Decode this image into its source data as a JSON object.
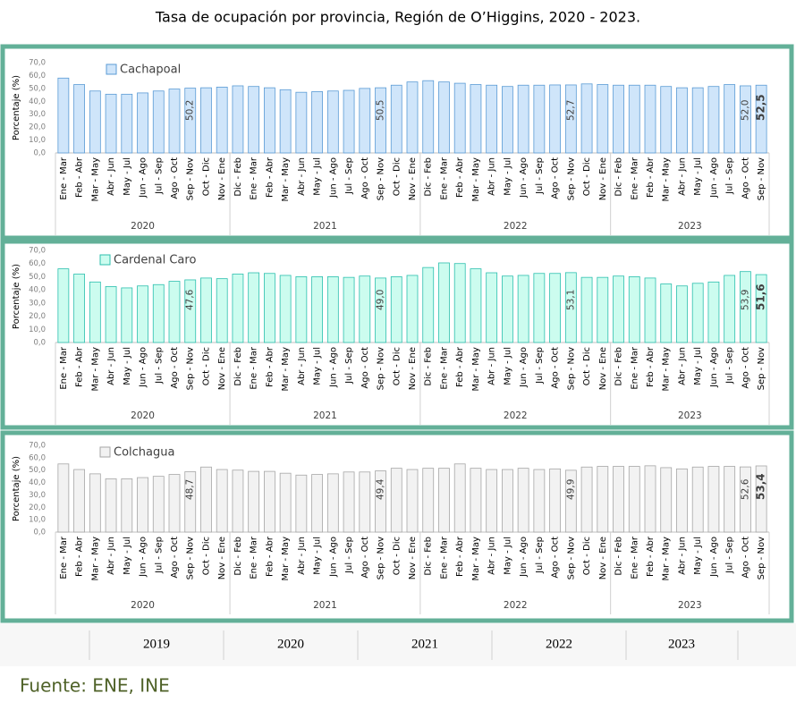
{
  "title": "Tasa de ocupación por provincia, Región de O’Higgins, 2020 - 2023.",
  "chart_data": [
    {
      "type": "bar",
      "ylabel": "Porcentaje (%)",
      "ylim": [
        0,
        70
      ],
      "yticks": [
        {
          "value": 0,
          "label": "0,0"
        },
        {
          "value": 10,
          "label": "10,0"
        },
        {
          "value": 20,
          "label": "20,0"
        },
        {
          "value": 30,
          "label": "30,0"
        },
        {
          "value": 40,
          "label": "40,0"
        },
        {
          "value": 50,
          "label": "50,0"
        },
        {
          "value": 60,
          "label": "60,0"
        },
        {
          "value": 70,
          "label": "70,0"
        }
      ],
      "groups": [
        {
          "name": "2020",
          "categories": [
            "Ene - Mar",
            "Feb - Abr",
            "Mar - May",
            "Abr - Jun",
            "May - Jul",
            "Jun - Ago",
            "Jul - Sep",
            "Ago - Oct",
            "Sep - Nov",
            "Oct - Dic",
            "Nov - Ene"
          ]
        },
        {
          "name": "2021",
          "categories": [
            "Dic - Feb",
            "Ene - Mar",
            "Feb - Abr",
            "Mar - May",
            "Abr - Jun",
            "May - Jul",
            "Jun - Ago",
            "Jul - Sep",
            "Ago - Oct",
            "Sep - Nov",
            "Oct - Dic",
            "Nov - Ene"
          ]
        },
        {
          "name": "2022",
          "categories": [
            "Dic - Feb",
            "Ene - Mar",
            "Feb - Abr",
            "Mar - May",
            "Abr - Jun",
            "May - Jul",
            "Jun - Ago",
            "Jul - Sep",
            "Ago - Oct",
            "Sep - Nov",
            "Oct - Dic",
            "Nov - Ene"
          ]
        },
        {
          "name": "2023",
          "categories": [
            "Dic - Feb",
            "Ene - Mar",
            "Feb - Abr",
            "Mar - May",
            "Abr - Jun",
            "May - Jul",
            "Jun - Ago",
            "Jul - Sep",
            "Ago - Oct",
            "Sep - Nov"
          ]
        }
      ],
      "series": [
        {
          "name": "Cachapoal",
          "color": "#cfe5fa",
          "edge": "#5b9bd5",
          "values": [
            58,
            53,
            48,
            45.5,
            45.5,
            46.5,
            48,
            49.5,
            50.2,
            50.5,
            51,
            52,
            51.5,
            50.5,
            49,
            47,
            47.5,
            48,
            48.5,
            50,
            50.5,
            52.5,
            55,
            56,
            55,
            54,
            53,
            52.5,
            51.5,
            52.5,
            52.5,
            52.7,
            52.7,
            53.5,
            53,
            52.5,
            52.5,
            52.5,
            51.5,
            50.5,
            50.5,
            51.5,
            53,
            52.0,
            52.5
          ],
          "value_labels": [
            null,
            null,
            null,
            null,
            null,
            null,
            null,
            null,
            "50,2",
            null,
            null,
            null,
            null,
            null,
            null,
            null,
            null,
            null,
            null,
            null,
            "50,5",
            null,
            null,
            null,
            null,
            null,
            null,
            null,
            null,
            null,
            null,
            null,
            "52,7",
            null,
            null,
            null,
            null,
            null,
            null,
            null,
            null,
            null,
            null,
            "52,0",
            "52,5"
          ]
        }
      ]
    },
    {
      "type": "bar",
      "ylabel": "Porcentaje (%)",
      "ylim": [
        0,
        70
      ],
      "yticks": [
        {
          "value": 0,
          "label": "0,0"
        },
        {
          "value": 10,
          "label": "10,0"
        },
        {
          "value": 20,
          "label": "20,0"
        },
        {
          "value": 30,
          "label": "30,0"
        },
        {
          "value": 40,
          "label": "40,0"
        },
        {
          "value": 50,
          "label": "50,0"
        },
        {
          "value": 60,
          "label": "60,0"
        },
        {
          "value": 70,
          "label": "70,0"
        }
      ],
      "groups": [
        {
          "name": "2020",
          "categories": [
            "Ene - Mar",
            "Feb - Abr",
            "Mar - May",
            "Abr - Jun",
            "May - Jul",
            "Jun - Ago",
            "Jul - Sep",
            "Ago - Oct",
            "Sep - Nov",
            "Oct - Dic",
            "Nov - Ene"
          ]
        },
        {
          "name": "2021",
          "categories": [
            "Dic - Feb",
            "Ene - Mar",
            "Feb - Abr",
            "Mar - May",
            "Abr - Jun",
            "May - Jul",
            "Jun - Ago",
            "Jul - Sep",
            "Ago - Oct",
            "Sep - Nov",
            "Oct - Dic",
            "Nov - Ene"
          ]
        },
        {
          "name": "2022",
          "categories": [
            "Dic - Feb",
            "Ene - Mar",
            "Feb - Abr",
            "Mar - May",
            "Abr - Jun",
            "May - Jul",
            "Jun - Ago",
            "Jul - Sep",
            "Ago - Oct",
            "Sep - Nov",
            "Oct - Dic",
            "Nov - Ene"
          ]
        },
        {
          "name": "2023",
          "categories": [
            "Dic - Feb",
            "Ene - Mar",
            "Feb - Abr",
            "Mar - May",
            "Abr - Jun",
            "May - Jul",
            "Jun - Ago",
            "Jul - Sep",
            "Ago - Oct",
            "Sep - Nov"
          ]
        }
      ],
      "series": [
        {
          "name": "Cardenal Caro",
          "color": "#ccfcef",
          "edge": "#2cbfae",
          "values": [
            56,
            52,
            46,
            42.5,
            41.5,
            43,
            44,
            46.5,
            47.6,
            49,
            48.5,
            52,
            53,
            52.5,
            51,
            50,
            50,
            50,
            49.5,
            50.5,
            49.0,
            50,
            51,
            57,
            60.5,
            60,
            56,
            53,
            50.5,
            51,
            52.5,
            52.5,
            53.1,
            49.5,
            49.5,
            50.5,
            50,
            49,
            44.5,
            43,
            45,
            46,
            51,
            53.9,
            51.6
          ],
          "value_labels": [
            null,
            null,
            null,
            null,
            null,
            null,
            null,
            null,
            "47,6",
            null,
            null,
            null,
            null,
            null,
            null,
            null,
            null,
            null,
            null,
            null,
            "49,0",
            null,
            null,
            null,
            null,
            null,
            null,
            null,
            null,
            null,
            null,
            null,
            "53,1",
            null,
            null,
            null,
            null,
            null,
            null,
            null,
            null,
            null,
            null,
            "53,9",
            "51,6"
          ]
        }
      ]
    },
    {
      "type": "bar",
      "ylabel": "Porcentaje (%)",
      "ylim": [
        0,
        70
      ],
      "yticks": [
        {
          "value": 0,
          "label": "0,0"
        },
        {
          "value": 10,
          "label": "10,0"
        },
        {
          "value": 20,
          "label": "20,0"
        },
        {
          "value": 30,
          "label": "30,0"
        },
        {
          "value": 40,
          "label": "40,0"
        },
        {
          "value": 50,
          "label": "50,0"
        },
        {
          "value": 60,
          "label": "60,0"
        },
        {
          "value": 70,
          "label": "70,0"
        }
      ],
      "groups": [
        {
          "name": "2020",
          "categories": [
            "Ene - Mar",
            "Feb - Abr",
            "Mar - May",
            "Abr - Jun",
            "May - Jul",
            "Jun - Ago",
            "Jul - Sep",
            "Ago - Oct",
            "Sep - Nov",
            "Oct - Dic",
            "Nov - Ene"
          ]
        },
        {
          "name": "2021",
          "categories": [
            "Dic - Feb",
            "Ene - Mar",
            "Feb - Abr",
            "Mar - May",
            "Abr - Jun",
            "May - Jul",
            "Jun - Ago",
            "Jul - Sep",
            "Ago - Oct",
            "Sep - Nov",
            "Oct - Dic",
            "Nov - Ene"
          ]
        },
        {
          "name": "2022",
          "categories": [
            "Dic - Feb",
            "Ene - Mar",
            "Feb - Abr",
            "Mar - May",
            "Abr - Jun",
            "May - Jul",
            "Jun - Ago",
            "Jul - Sep",
            "Ago - Oct",
            "Sep - Nov",
            "Oct - Dic",
            "Nov - Ene"
          ]
        },
        {
          "name": "2023",
          "categories": [
            "Dic - Feb",
            "Ene - Mar",
            "Feb - Abr",
            "Mar - May",
            "Abr - Jun",
            "May - Jul",
            "Jun - Ago",
            "Jul - Sep",
            "Ago - Oct",
            "Sep - Nov"
          ]
        }
      ],
      "series": [
        {
          "name": "Colchagua",
          "color": "#f2f2f2",
          "edge": "#a6a6a6",
          "values": [
            55,
            50.5,
            47,
            43,
            43,
            44,
            45,
            46.5,
            48.7,
            52.5,
            50.5,
            50,
            49,
            49,
            47.5,
            46,
            46.5,
            47,
            48.5,
            48.5,
            49.4,
            51.5,
            50.5,
            51.5,
            51.5,
            55,
            51.5,
            50.5,
            50.5,
            51.5,
            50.5,
            51,
            49.9,
            52.5,
            53,
            53,
            53,
            53.5,
            52,
            51,
            52.5,
            53,
            53,
            52.6,
            53.4
          ],
          "value_labels": [
            null,
            null,
            null,
            null,
            null,
            null,
            null,
            null,
            "48,7",
            null,
            null,
            null,
            null,
            null,
            null,
            null,
            null,
            null,
            null,
            null,
            "49,4",
            null,
            null,
            null,
            null,
            null,
            null,
            null,
            null,
            null,
            null,
            null,
            "49,9",
            null,
            null,
            null,
            null,
            null,
            null,
            null,
            null,
            null,
            null,
            "52,6",
            "53,4"
          ]
        }
      ]
    }
  ],
  "table": {
    "columns": [
      "2019",
      "2020",
      "2021",
      "2022",
      "2023"
    ]
  },
  "source": "Fuente: ENE, INE"
}
